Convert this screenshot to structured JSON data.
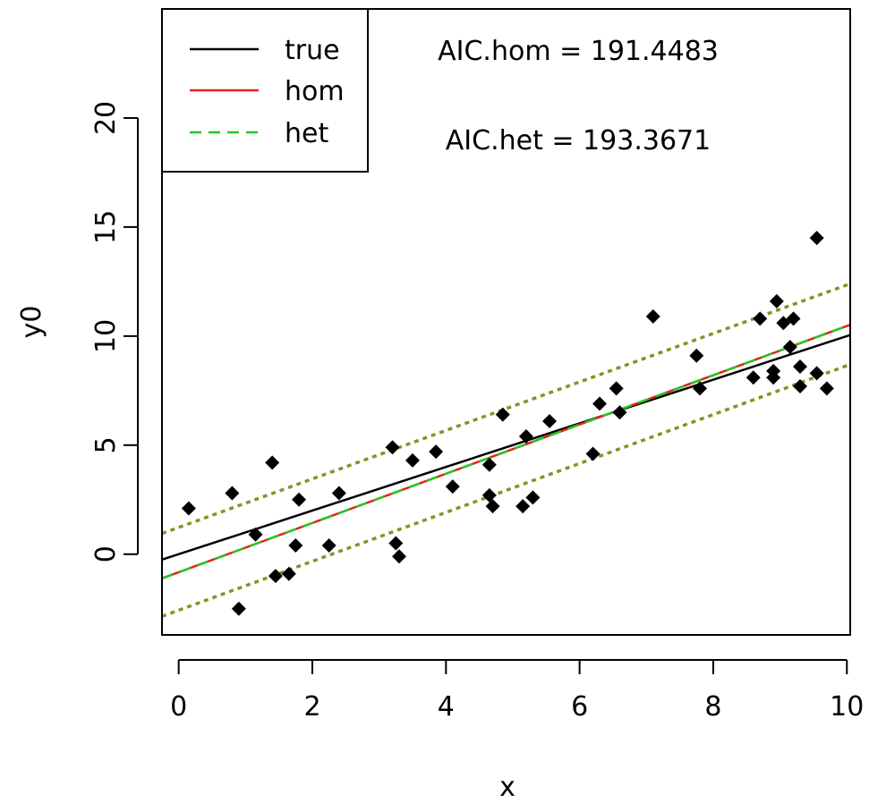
{
  "chart_data": {
    "type": "scatter",
    "title": "",
    "xlabel": "x",
    "ylabel": "y0",
    "xlim": [
      -0.25,
      10.05
    ],
    "ylim": [
      -3.7,
      25
    ],
    "x_ticks": [
      0,
      2,
      4,
      6,
      8,
      10
    ],
    "y_ticks": [
      0,
      5,
      10,
      15,
      20
    ],
    "grid": false,
    "legend": {
      "position": "top-left",
      "entries": [
        {
          "label": "true",
          "color": "#000000",
          "style": "solid"
        },
        {
          "label": "hom",
          "color": "#e8201c",
          "style": "solid"
        },
        {
          "label": "het",
          "color": "#22c822",
          "style": "dashed"
        }
      ]
    },
    "annotations": [
      "AIC.hom = 191.4483",
      "AIC.het = 193.3671"
    ],
    "points": {
      "x": [
        0.15,
        0.8,
        0.9,
        1.15,
        1.4,
        1.45,
        1.65,
        1.75,
        1.8,
        2.25,
        2.4,
        3.2,
        3.25,
        3.3,
        3.5,
        3.85,
        4.1,
        4.65,
        4.65,
        4.7,
        4.85,
        5.15,
        5.2,
        5.3,
        5.55,
        6.2,
        6.3,
        6.55,
        6.6,
        7.1,
        7.75,
        7.8,
        8.6,
        8.7,
        8.9,
        8.9,
        8.95,
        9.05,
        9.15,
        9.2,
        9.3,
        9.3,
        9.55,
        9.55,
        9.7
      ],
      "y": [
        2.1,
        2.8,
        -2.5,
        0.9,
        4.2,
        -1.0,
        -0.9,
        0.4,
        2.5,
        0.4,
        2.8,
        4.9,
        0.5,
        -0.1,
        4.3,
        4.7,
        3.1,
        4.1,
        2.7,
        2.2,
        6.4,
        2.2,
        5.4,
        2.6,
        6.1,
        4.6,
        6.9,
        7.6,
        6.5,
        10.9,
        9.1,
        7.6,
        8.1,
        10.8,
        8.1,
        8.4,
        11.6,
        10.6,
        9.5,
        10.8,
        8.6,
        7.7,
        14.5,
        8.3,
        7.6
      ]
    },
    "lines": [
      {
        "name": "true",
        "color": "#000000",
        "style": "solid",
        "x": [
          -0.25,
          10.05
        ],
        "y": [
          -0.25,
          10.05
        ]
      },
      {
        "name": "hom",
        "color": "#e8201c",
        "style": "solid",
        "x": [
          -0.25,
          10.05
        ],
        "y": [
          -1.11,
          10.52
        ]
      },
      {
        "name": "het",
        "color": "#22c822",
        "style": "dashed",
        "x": [
          -0.25,
          10.05
        ],
        "y": [
          -1.11,
          10.52
        ]
      },
      {
        "name": "het-upper",
        "color": "#7a9a20",
        "style": "dotted",
        "x": [
          -0.25,
          10.05
        ],
        "y": [
          0.95,
          12.4
        ]
      },
      {
        "name": "het-lower",
        "color": "#7a9a20",
        "style": "dotted",
        "x": [
          -0.25,
          10.05
        ],
        "y": [
          -2.85,
          8.7
        ]
      }
    ]
  }
}
